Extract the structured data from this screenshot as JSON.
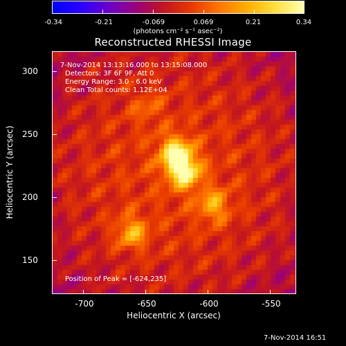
{
  "colorbar": {
    "tick_labels": [
      "-0.34",
      "-0.21",
      "-0.069",
      "0.069",
      "0.21",
      "0.34"
    ],
    "units": "(photons cm⁻² s⁻¹ asec⁻²)",
    "colormap": [
      "#0000ff",
      "#2a00ff",
      "#6a00cc",
      "#9a007a",
      "#c21520",
      "#e83a00",
      "#ff7800",
      "#ffb000",
      "#ffe040",
      "#ffffb0"
    ]
  },
  "title": "Reconstructed RHESSI Image",
  "annotations": {
    "time": "7-Nov-2014 13:13:16.000 to 13:15:08.000",
    "detectors": "Detectors: 3F 6F 9F, Att 0",
    "energy": "Energy Range: 3.0 - 6.0 keV",
    "clean": "Clean    Total counts: 1.12E+04",
    "peak": "Position of Peak = [-624,235]"
  },
  "axes": {
    "xlabel": "Heliocentric X (arcsec)",
    "ylabel": "Heliocentric Y (arcsec)",
    "x_ticks": [
      "-700",
      "-650",
      "-600",
      "-550"
    ],
    "y_ticks": [
      "300",
      "250",
      "200",
      "150"
    ],
    "xlim": [
      -725,
      -532
    ],
    "ylim": [
      122,
      314
    ]
  },
  "sources": [
    {
      "x": -627,
      "y": 233,
      "amp": 1.0
    },
    {
      "x": -620,
      "y": 218,
      "amp": 0.95
    },
    {
      "x": -597,
      "y": 192,
      "amp": 0.55
    },
    {
      "x": -662,
      "y": 170,
      "amp": 0.6
    },
    {
      "x": -650,
      "y": 270,
      "amp": 0.25
    }
  ],
  "timestamp": "7-Nov-2014 16:51"
}
